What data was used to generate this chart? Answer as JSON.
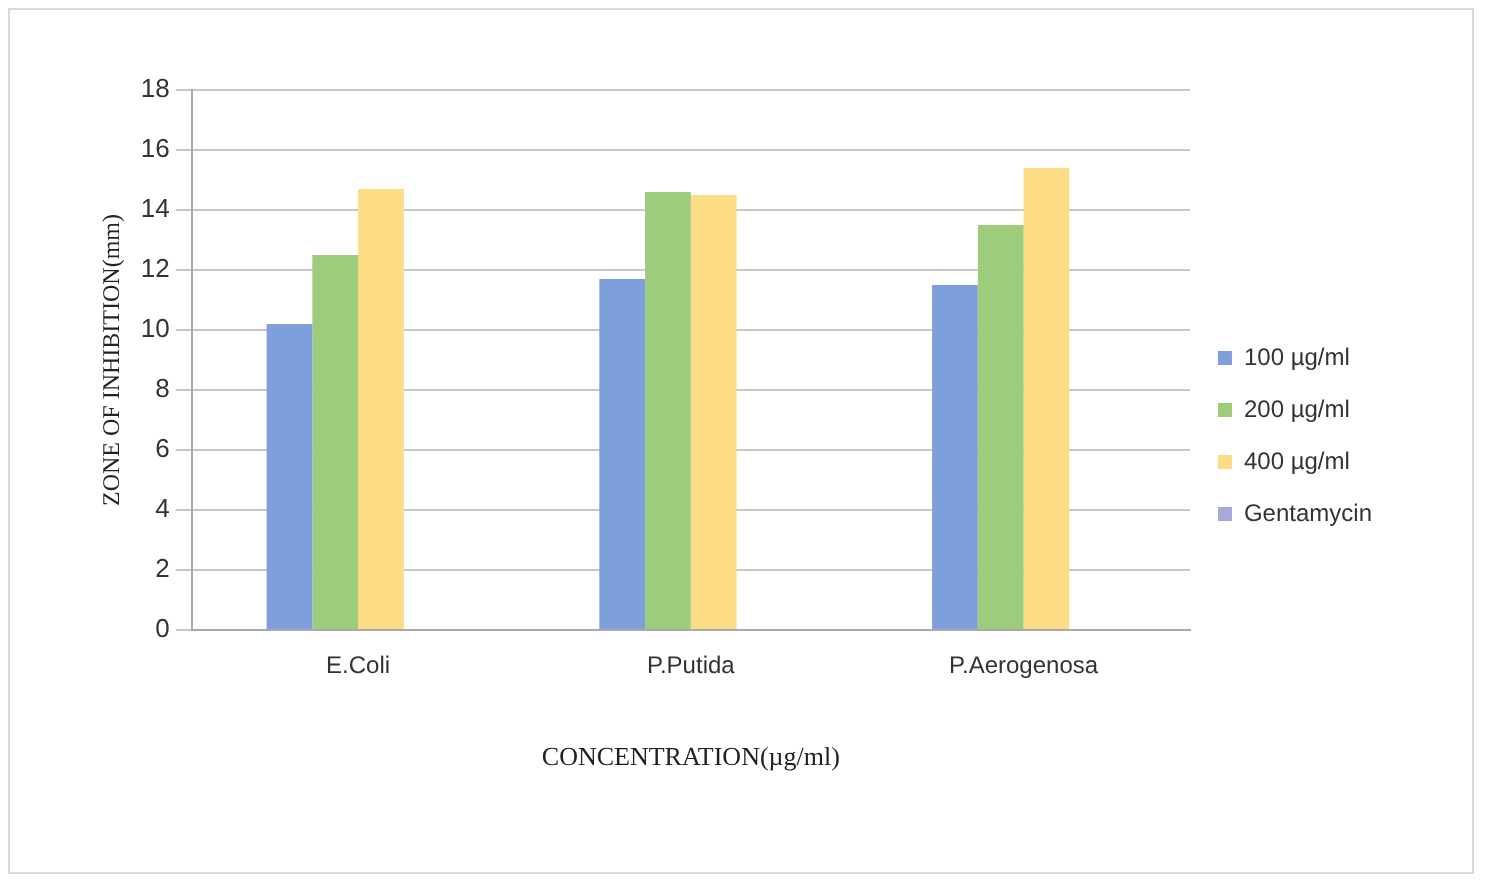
{
  "chart_data": {
    "type": "bar",
    "xlabel": "CONCENTRATION(µg/ml)",
    "ylabel": "ZONE OF INHIBITION(mm)",
    "categories": [
      "E.Coli",
      "P.Putida",
      "P.Aerogenosa"
    ],
    "series": [
      {
        "name": "100 µg/ml",
        "color": "#7f9fdc",
        "values": [
          10.2,
          11.7,
          11.5
        ]
      },
      {
        "name": "200 µg/ml",
        "color": "#9ccc7c",
        "values": [
          12.5,
          14.6,
          13.5
        ]
      },
      {
        "name": "400 µg/ml",
        "color": "#fcdc84",
        "values": [
          14.7,
          14.5,
          15.4
        ]
      },
      {
        "name": "Gentamycin",
        "color": "#a9a9d9",
        "values": [
          null,
          null,
          null
        ]
      }
    ],
    "ylim": [
      0,
      18
    ],
    "yticks": [
      0,
      2,
      4,
      6,
      8,
      10,
      12,
      14,
      16,
      18
    ],
    "grid": "y",
    "legend": "right"
  }
}
